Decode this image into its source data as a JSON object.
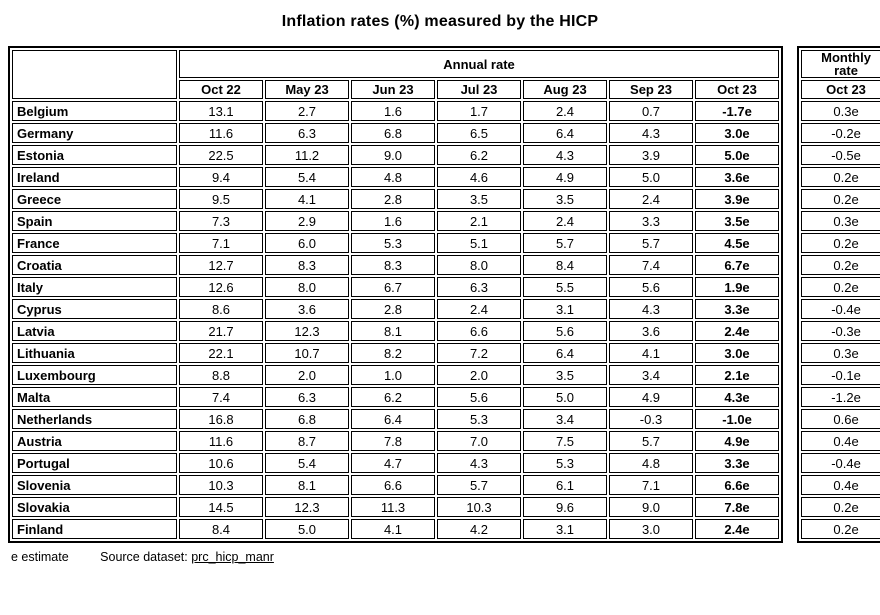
{
  "page": {
    "title": "Inflation rates (%) measured by the HICP"
  },
  "table": {
    "annual_header": "Annual rate",
    "monthly_header": "Monthly rate",
    "monthly_column": "Oct 23",
    "columns": [
      "Oct 22",
      "May 23",
      "Jun 23",
      "Jul 23",
      "Aug 23",
      "Sep 23",
      "Oct 23"
    ],
    "rows": [
      {
        "country": "Belgium",
        "values": [
          "13.1",
          "2.7",
          "1.6",
          "1.7",
          "2.4",
          "0.7",
          "-1.7e"
        ],
        "monthly": "0.3e"
      },
      {
        "country": "Germany",
        "values": [
          "11.6",
          "6.3",
          "6.8",
          "6.5",
          "6.4",
          "4.3",
          "3.0e"
        ],
        "monthly": "-0.2e"
      },
      {
        "country": "Estonia",
        "values": [
          "22.5",
          "11.2",
          "9.0",
          "6.2",
          "4.3",
          "3.9",
          "5.0e"
        ],
        "monthly": "-0.5e"
      },
      {
        "country": "Ireland",
        "values": [
          "9.4",
          "5.4",
          "4.8",
          "4.6",
          "4.9",
          "5.0",
          "3.6e"
        ],
        "monthly": "0.2e"
      },
      {
        "country": "Greece",
        "values": [
          "9.5",
          "4.1",
          "2.8",
          "3.5",
          "3.5",
          "2.4",
          "3.9e"
        ],
        "monthly": "0.2e"
      },
      {
        "country": "Spain",
        "values": [
          "7.3",
          "2.9",
          "1.6",
          "2.1",
          "2.4",
          "3.3",
          "3.5e"
        ],
        "monthly": "0.3e"
      },
      {
        "country": "France",
        "values": [
          "7.1",
          "6.0",
          "5.3",
          "5.1",
          "5.7",
          "5.7",
          "4.5e"
        ],
        "monthly": "0.2e"
      },
      {
        "country": "Croatia",
        "values": [
          "12.7",
          "8.3",
          "8.3",
          "8.0",
          "8.4",
          "7.4",
          "6.7e"
        ],
        "monthly": "0.2e"
      },
      {
        "country": "Italy",
        "values": [
          "12.6",
          "8.0",
          "6.7",
          "6.3",
          "5.5",
          "5.6",
          "1.9e"
        ],
        "monthly": "0.2e"
      },
      {
        "country": "Cyprus",
        "values": [
          "8.6",
          "3.6",
          "2.8",
          "2.4",
          "3.1",
          "4.3",
          "3.3e"
        ],
        "monthly": "-0.4e"
      },
      {
        "country": "Latvia",
        "values": [
          "21.7",
          "12.3",
          "8.1",
          "6.6",
          "5.6",
          "3.6",
          "2.4e"
        ],
        "monthly": "-0.3e"
      },
      {
        "country": "Lithuania",
        "values": [
          "22.1",
          "10.7",
          "8.2",
          "7.2",
          "6.4",
          "4.1",
          "3.0e"
        ],
        "monthly": "0.3e"
      },
      {
        "country": "Luxembourg",
        "values": [
          "8.8",
          "2.0",
          "1.0",
          "2.0",
          "3.5",
          "3.4",
          "2.1e"
        ],
        "monthly": "-0.1e"
      },
      {
        "country": "Malta",
        "values": [
          "7.4",
          "6.3",
          "6.2",
          "5.6",
          "5.0",
          "4.9",
          "4.3e"
        ],
        "monthly": "-1.2e"
      },
      {
        "country": "Netherlands",
        "values": [
          "16.8",
          "6.8",
          "6.4",
          "5.3",
          "3.4",
          "-0.3",
          "-1.0e"
        ],
        "monthly": "0.6e"
      },
      {
        "country": "Austria",
        "values": [
          "11.6",
          "8.7",
          "7.8",
          "7.0",
          "7.5",
          "5.7",
          "4.9e"
        ],
        "monthly": "0.4e"
      },
      {
        "country": "Portugal",
        "values": [
          "10.6",
          "5.4",
          "4.7",
          "4.3",
          "5.3",
          "4.8",
          "3.3e"
        ],
        "monthly": "-0.4e"
      },
      {
        "country": "Slovenia",
        "values": [
          "10.3",
          "8.1",
          "6.6",
          "5.7",
          "6.1",
          "7.1",
          "6.6e"
        ],
        "monthly": "0.4e"
      },
      {
        "country": "Slovakia",
        "values": [
          "14.5",
          "12.3",
          "11.3",
          "10.3",
          "9.6",
          "9.0",
          "7.8e"
        ],
        "monthly": "0.2e"
      },
      {
        "country": "Finland",
        "values": [
          "8.4",
          "5.0",
          "4.1",
          "4.2",
          "3.1",
          "3.0",
          "2.4e"
        ],
        "monthly": "0.2e"
      }
    ]
  },
  "footer": {
    "estimate_note": "e estimate",
    "source_label": "Source dataset:",
    "source_link": "prc_hicp_manr"
  },
  "colors": {
    "border": "#000000",
    "text": "#000000",
    "background": "#ffffff"
  }
}
